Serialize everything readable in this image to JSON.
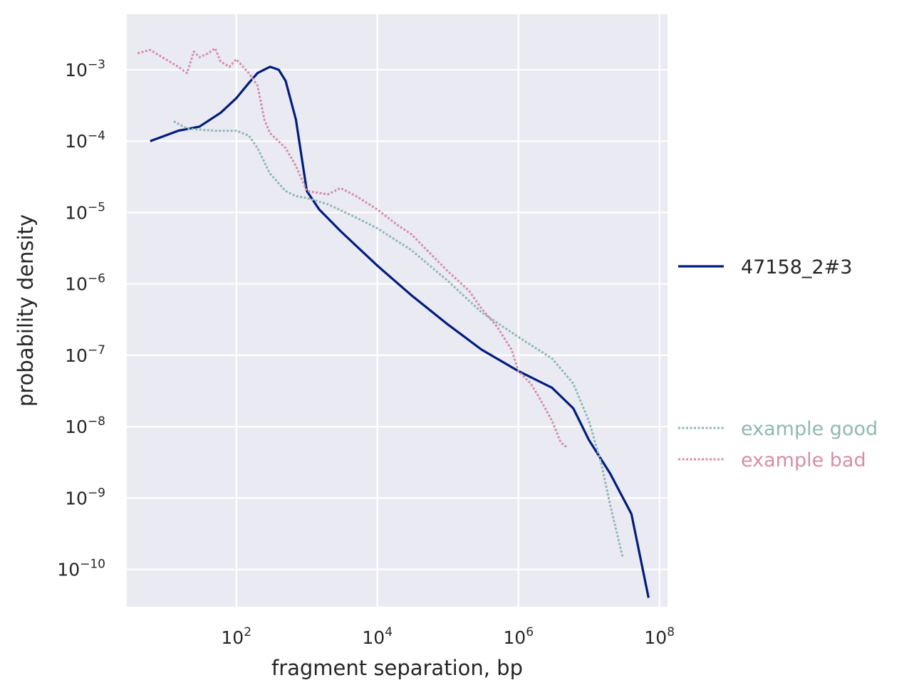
{
  "chart_data": {
    "type": "line",
    "xlabel": "fragment separation, bp",
    "ylabel": "probability density",
    "x_scale": "log",
    "y_scale": "log",
    "xlim": [
      2.8,
      130000000
    ],
    "ylim": [
      3e-11,
      0.006
    ],
    "grid": true,
    "background": "#EAEAF2",
    "x_ticks": [
      {
        "value": 100,
        "base": "10",
        "exp": "2"
      },
      {
        "value": 10000,
        "base": "10",
        "exp": "4"
      },
      {
        "value": 1000000,
        "base": "10",
        "exp": "6"
      },
      {
        "value": 100000000,
        "base": "10",
        "exp": "8"
      }
    ],
    "y_ticks": [
      {
        "value": 0.001,
        "base": "10",
        "exp": "−3"
      },
      {
        "value": 0.0001,
        "base": "10",
        "exp": "−4"
      },
      {
        "value": 1e-05,
        "base": "10",
        "exp": "−5"
      },
      {
        "value": 1e-06,
        "base": "10",
        "exp": "−6"
      },
      {
        "value": 1e-07,
        "base": "10",
        "exp": "−7"
      },
      {
        "value": 1e-08,
        "base": "10",
        "exp": "−8"
      },
      {
        "value": 1e-09,
        "base": "10",
        "exp": "−9"
      },
      {
        "value": 1e-10,
        "base": "10",
        "exp": "−10"
      }
    ],
    "legend_position": "right",
    "series": [
      {
        "name": "47158_2#3",
        "style": "solid",
        "color": "#001c7f",
        "x": [
          6,
          15,
          30,
          60,
          100,
          150,
          200,
          300,
          400,
          500,
          700,
          1000,
          1500,
          3000,
          10000,
          30000,
          100000,
          300000,
          1000000,
          3000000,
          6000000,
          10000000,
          20000000,
          40000000,
          70000000
        ],
        "y": [
          0.0001,
          0.00014,
          0.00016,
          0.00025,
          0.0004,
          0.00065,
          0.0009,
          0.0011,
          0.001,
          0.0007,
          0.0002,
          2e-05,
          1.1e-05,
          5.5e-06,
          1.8e-06,
          7e-07,
          2.7e-07,
          1.2e-07,
          6e-08,
          3.5e-08,
          1.8e-08,
          6.5e-09,
          2.2e-09,
          6e-10,
          4e-11
        ]
      },
      {
        "name": "example good",
        "style": "dotted",
        "color": "#8fb8b1",
        "x": [
          13,
          20,
          50,
          100,
          150,
          200,
          300,
          500,
          700,
          1000,
          2000,
          5000,
          10000,
          30000,
          100000,
          300000,
          1000000,
          3000000,
          6000000,
          10000000,
          15000000,
          20000000,
          30000000
        ],
        "y": [
          0.00019,
          0.00015,
          0.00014,
          0.00014,
          0.00012,
          8e-05,
          3.5e-05,
          2e-05,
          1.7e-05,
          1.6e-05,
          1.3e-05,
          8.5e-06,
          6e-06,
          3e-06,
          1.1e-06,
          4e-07,
          1.8e-07,
          9e-08,
          4e-08,
          1.2e-08,
          3e-09,
          8e-10,
          1.5e-10
        ]
      },
      {
        "name": "example bad",
        "style": "dotted",
        "color": "#d48fa8",
        "x": [
          4,
          6,
          10,
          15,
          20,
          25,
          30,
          40,
          50,
          60,
          80,
          100,
          150,
          200,
          250,
          300,
          500,
          700,
          1000,
          2000,
          3000,
          5000,
          10000,
          20000,
          30000,
          50000,
          100000,
          200000,
          300000,
          500000,
          800000,
          1000000,
          1500000,
          2000000,
          3000000,
          4000000,
          5000000
        ],
        "y": [
          0.0017,
          0.0019,
          0.0014,
          0.0011,
          0.0009,
          0.0018,
          0.0015,
          0.0017,
          0.002,
          0.0013,
          0.0011,
          0.0014,
          0.0009,
          0.0006,
          0.0002,
          0.00013,
          8e-05,
          4.5e-05,
          2e-05,
          1.8e-05,
          2.2e-05,
          1.7e-05,
          1.1e-05,
          6.5e-06,
          5e-06,
          3e-06,
          1.5e-06,
          8e-07,
          4.5e-07,
          2.5e-07,
          1.2e-07,
          6e-08,
          4e-08,
          2.5e-08,
          1.2e-08,
          6e-09,
          5e-09
        ]
      }
    ]
  }
}
